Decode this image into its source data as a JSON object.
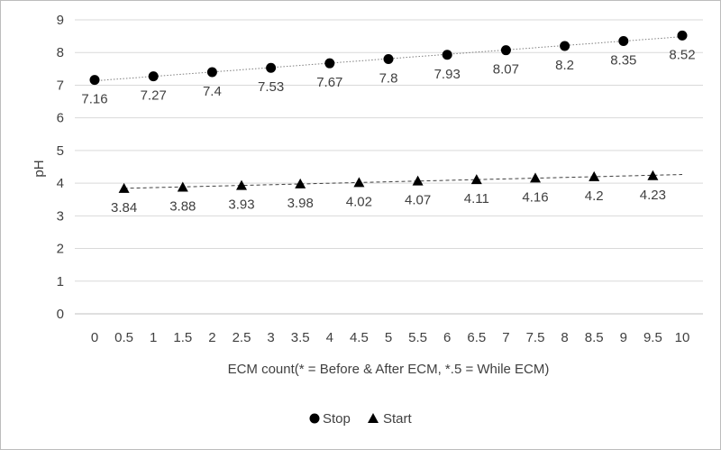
{
  "chart_data": {
    "type": "scatter",
    "xlabel": "ECM count(* = Before & After ECM, *.5 = While ECM)",
    "ylabel": "pH",
    "x_ticks": [
      "0",
      "0.5",
      "1",
      "1.5",
      "2",
      "2.5",
      "3",
      "3.5",
      "4",
      "4.5",
      "5",
      "5.5",
      "6",
      "6.5",
      "7",
      "7.5",
      "8",
      "8.5",
      "9",
      "9.5",
      "10"
    ],
    "y_ticks": [
      "0",
      "1",
      "2",
      "3",
      "4",
      "5",
      "6",
      "7",
      "8",
      "9"
    ],
    "xlim": [
      0,
      10
    ],
    "ylim": [
      0,
      9
    ],
    "grid": "horizontal",
    "legend": "bottom",
    "series": [
      {
        "name": "Stop",
        "marker": "circle",
        "color": "#000000",
        "trendline": "linear, dotted",
        "x": [
          0,
          1,
          2,
          3,
          4,
          5,
          6,
          7,
          8,
          9,
          10
        ],
        "y": [
          7.16,
          7.27,
          7.4,
          7.53,
          7.67,
          7.8,
          7.93,
          8.07,
          8.2,
          8.35,
          8.52
        ],
        "labels": [
          "7.16",
          "7.27",
          "7.4",
          "7.53",
          "7.67",
          "7.8",
          "7.93",
          "8.07",
          "8.2",
          "8.35",
          "8.52"
        ]
      },
      {
        "name": "Start",
        "marker": "triangle",
        "color": "#000000",
        "trendline": "linear, dashed",
        "x": [
          0.5,
          1.5,
          2.5,
          3.5,
          4.5,
          5.5,
          6.5,
          7.5,
          8.5,
          9.5
        ],
        "y": [
          3.84,
          3.88,
          3.93,
          3.98,
          4.02,
          4.07,
          4.11,
          4.16,
          4.2,
          4.23
        ],
        "labels": [
          "3.84",
          "3.88",
          "3.93",
          "3.98",
          "4.02",
          "4.07",
          "4.11",
          "4.16",
          "4.2",
          "4.23"
        ]
      }
    ]
  }
}
